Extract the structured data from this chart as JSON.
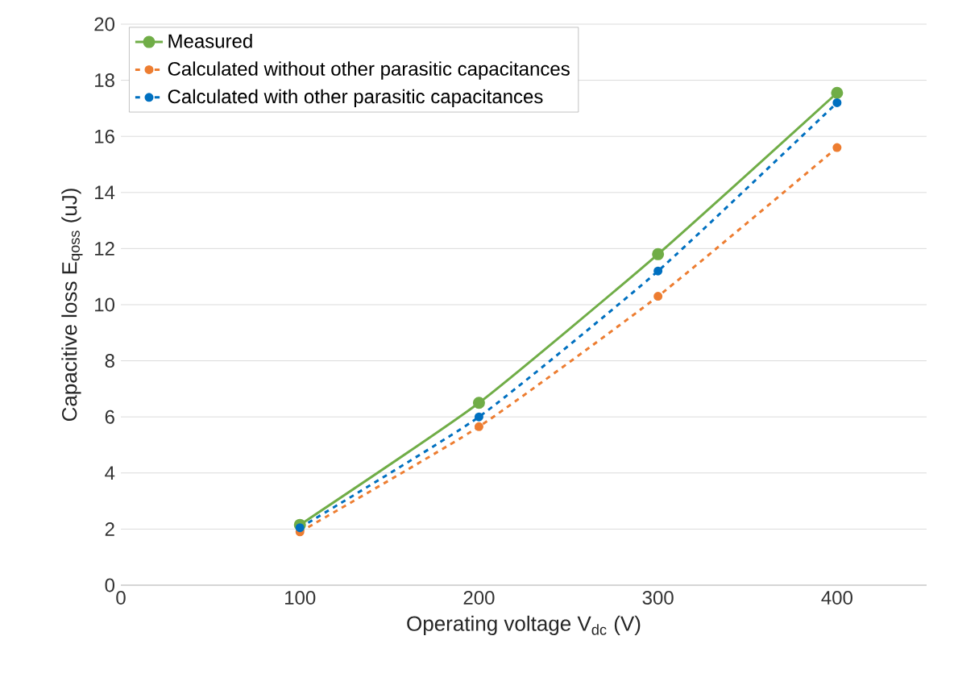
{
  "chart_data": {
    "type": "line",
    "xlabel": "Operating voltage V$_{dc}$ (V)",
    "ylabel": "Capacitive loss E$_{qoss}$ (uJ)",
    "x": [
      100,
      200,
      300,
      400
    ],
    "series": [
      {
        "name": "Measured",
        "color": "#70ad47",
        "values": [
          2.15,
          6.5,
          11.8,
          17.55
        ],
        "line_style": "solid"
      },
      {
        "name": "Calculated without other parasitic capacitances",
        "color": "#ed7d31",
        "values": [
          1.9,
          5.65,
          10.3,
          15.6
        ],
        "line_style": "dashed"
      },
      {
        "name": "Calculated with other parasitic capacitances",
        "color": "#0070c0",
        "values": [
          2.05,
          6.0,
          11.2,
          17.2
        ],
        "line_style": "dashed"
      }
    ],
    "xlim": [
      0,
      450
    ],
    "xticks": [
      0,
      100,
      200,
      300,
      400
    ],
    "ylim": [
      0,
      20
    ],
    "yticks": [
      0,
      2,
      4,
      6,
      8,
      10,
      12,
      14,
      16,
      18,
      20
    ],
    "grid": "y",
    "legend": "top left",
    "marker": "circle"
  }
}
